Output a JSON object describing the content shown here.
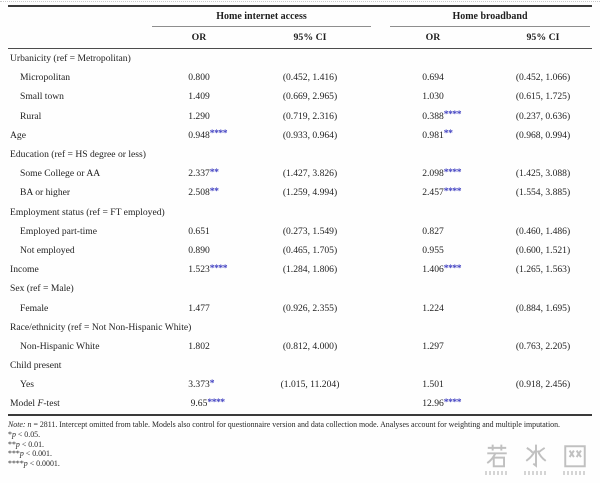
{
  "colors": {
    "star_blue": "#3d3dc0",
    "rule_dark": "#3a3a3a",
    "group_rule": "#8e8e8e",
    "watermark_gray": "#b6b6b6"
  },
  "table": {
    "col_groups": [
      {
        "label": "Home internet access"
      },
      {
        "label": "Home broadband"
      }
    ],
    "sub_headers": [
      "OR",
      "95% CI",
      "OR",
      "95% CI"
    ],
    "rows": [
      {
        "label": "Urbanicity (ref = Metropolitan)",
        "section": true
      },
      {
        "label": "Micropolitan",
        "indent": true,
        "or1": "0.800",
        "ci1": "(0.452, 1.416)",
        "or2": "0.694",
        "ci2": "(0.452, 1.066)"
      },
      {
        "label": "Small town",
        "indent": true,
        "or1": "1.409",
        "ci1": "(0.669, 2.965)",
        "or2": "1.030",
        "ci2": "(0.615, 1.725)"
      },
      {
        "label": "Rural",
        "indent": true,
        "or1": "1.290",
        "ci1": "(0.719, 2.316)",
        "or2": "0.388",
        "stars2": "****",
        "ci2": "(0.237, 0.636)"
      },
      {
        "label": "Age",
        "or1": "0.948",
        "stars1": "****",
        "ci1": "(0.933, 0.964)",
        "or2": "0.981",
        "stars2": "**",
        "ci2": "(0.968, 0.994)"
      },
      {
        "label": "Education (ref = HS degree or less)",
        "section": true
      },
      {
        "label": "Some College or AA",
        "indent": true,
        "or1": "2.337",
        "stars1": "**",
        "ci1": "(1.427, 3.826)",
        "or2": "2.098",
        "stars2": "****",
        "ci2": "(1.425, 3.088)"
      },
      {
        "label": "BA or higher",
        "indent": true,
        "or1": "2.508",
        "stars1": "**",
        "ci1": "(1.259, 4.994)",
        "or2": "2.457",
        "stars2": "****",
        "ci2": "(1.554, 3.885)"
      },
      {
        "label": "Employment status (ref = FT employed)",
        "section": true
      },
      {
        "label": "Employed part-time",
        "indent": true,
        "or1": "0.651",
        "ci1": "(0.273, 1.549)",
        "or2": "0.827",
        "ci2": "(0.460, 1.486)"
      },
      {
        "label": "Not employed",
        "indent": true,
        "or1": "0.890",
        "ci1": "(0.465, 1.705)",
        "or2": "0.955",
        "ci2": "(0.600, 1.521)"
      },
      {
        "label": "Income",
        "or1": "1.523",
        "stars1": "****",
        "ci1": "(1.284, 1.806)",
        "or2": "1.406",
        "stars2": "****",
        "ci2": "(1.265, 1.563)"
      },
      {
        "label": "Sex (ref = Male)",
        "section": true
      },
      {
        "label": "Female",
        "indent": true,
        "or1": "1.477",
        "ci1": "(0.926, 2.355)",
        "or2": "1.224",
        "ci2": "(0.884, 1.695)"
      },
      {
        "label": "Race/ethnicity (ref = Not Non-Hispanic White)",
        "section": true
      },
      {
        "label": "Non-Hispanic White",
        "indent": true,
        "or1": "1.802",
        "ci1": "(0.812, 4.000)",
        "or2": "1.297",
        "ci2": "(0.763, 2.205)"
      },
      {
        "label": "Child present",
        "section": true
      },
      {
        "label": "Yes",
        "indent": true,
        "or1": "3.373",
        "stars1": "*",
        "ci1": "(1.015, 11.204)",
        "or2": "1.501",
        "ci2": "(0.918, 2.456)"
      },
      {
        "label_pre": "Model ",
        "label_italic": "F",
        "label_post": "-test",
        "or1": "9.65",
        "stars1": "****",
        "or2": "12.96",
        "stars2": "****"
      }
    ]
  },
  "footer": {
    "note_segments": [
      {
        "text": "Note: ",
        "italic": true
      },
      {
        "text": "n",
        "italic": true
      },
      {
        "text": " = 2811. Intercept omitted from table. Models also control for questionnaire version and data collection mode. Analyses account for weighting and multiple imputation.",
        "italic": false
      }
    ],
    "p_symbol": "p",
    "sig_lines": [
      {
        "stars": "*",
        "rest": " < 0.05."
      },
      {
        "stars": "**",
        "rest": " < 0.01."
      },
      {
        "stars": "***",
        "rest": " < 0.001."
      },
      {
        "stars": "****",
        "rest": " < 0.0001."
      }
    ]
  },
  "watermark": {
    "text": "若水网"
  }
}
